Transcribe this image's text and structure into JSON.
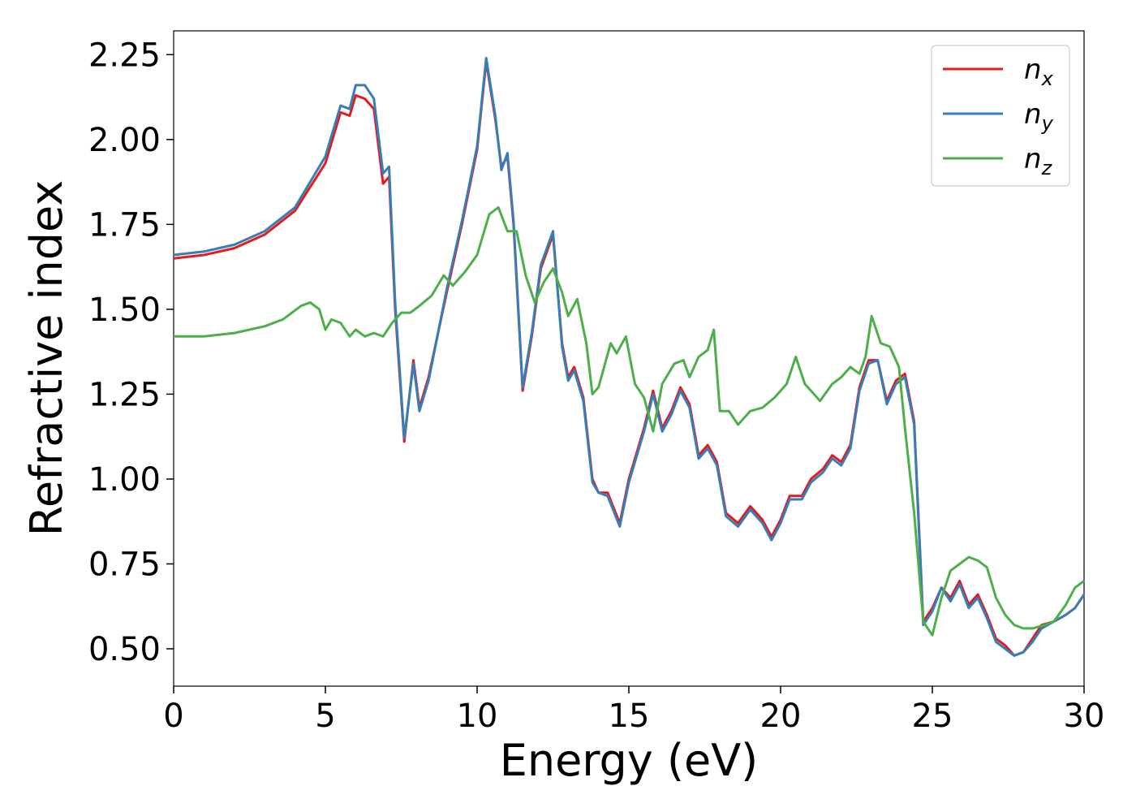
{
  "chart_data": {
    "type": "line",
    "xlabel": "Energy (eV)",
    "ylabel": "Refractive index",
    "xlim": [
      0,
      30
    ],
    "ylim": [
      0.39,
      2.32
    ],
    "xticks": [
      "0",
      "5",
      "10",
      "15",
      "20",
      "25",
      "30"
    ],
    "yticks": [
      "0.50",
      "0.75",
      "1.00",
      "1.25",
      "1.50",
      "1.75",
      "2.00",
      "2.25"
    ],
    "legend_position": "top-right",
    "grid": false,
    "series": [
      {
        "name": "n_x",
        "label_main": "n",
        "label_sub": "x",
        "color": "#e41a1c",
        "x": [
          0,
          1,
          2,
          3,
          4,
          5,
          5.5,
          5.8,
          6,
          6.3,
          6.6,
          6.9,
          7.1,
          7.3,
          7.6,
          7.9,
          8.1,
          8.4,
          9,
          9.5,
          10,
          10.3,
          10.6,
          10.8,
          11,
          11.2,
          11.5,
          11.8,
          12.1,
          12.5,
          12.8,
          13,
          13.2,
          13.5,
          13.8,
          14,
          14.3,
          14.7,
          15,
          15.5,
          15.8,
          16.1,
          16.4,
          16.7,
          17,
          17.3,
          17.6,
          17.9,
          18.2,
          18.6,
          19,
          19.4,
          19.7,
          20,
          20.3,
          20.7,
          21,
          21.4,
          21.7,
          22,
          22.3,
          22.6,
          22.9,
          23.2,
          23.5,
          23.8,
          24.1,
          24.4,
          24.7,
          25,
          25.3,
          25.6,
          25.9,
          26.2,
          26.5,
          26.8,
          27.1,
          27.4,
          27.7,
          28,
          28.3,
          28.6,
          29,
          29.4,
          29.7,
          30
        ],
        "y": [
          1.65,
          1.66,
          1.68,
          1.72,
          1.79,
          1.93,
          2.08,
          2.07,
          2.13,
          2.12,
          2.09,
          1.87,
          1.89,
          1.5,
          1.11,
          1.35,
          1.21,
          1.3,
          1.55,
          1.75,
          1.97,
          2.23,
          2.06,
          1.92,
          1.95,
          1.75,
          1.26,
          1.42,
          1.62,
          1.72,
          1.4,
          1.3,
          1.33,
          1.24,
          1,
          0.96,
          0.96,
          0.87,
          1,
          1.15,
          1.26,
          1.15,
          1.2,
          1.27,
          1.22,
          1.07,
          1.1,
          1.05,
          0.9,
          0.87,
          0.92,
          0.88,
          0.83,
          0.88,
          0.95,
          0.95,
          1,
          1.03,
          1.07,
          1.05,
          1.1,
          1.27,
          1.35,
          1.35,
          1.23,
          1.29,
          1.31,
          1.17,
          0.58,
          0.62,
          0.68,
          0.65,
          0.7,
          0.63,
          0.66,
          0.6,
          0.53,
          0.51,
          0.48,
          0.49,
          0.53,
          0.57,
          0.58,
          0.6,
          0.62,
          0.66
        ]
      },
      {
        "name": "n_y",
        "label_main": "n",
        "label_sub": "y",
        "color": "#377eb8",
        "x": [
          0,
          1,
          2,
          3,
          4,
          5,
          5.5,
          5.8,
          6,
          6.3,
          6.6,
          6.9,
          7.1,
          7.3,
          7.6,
          7.9,
          8.1,
          8.4,
          9,
          9.5,
          10,
          10.3,
          10.6,
          10.8,
          11,
          11.2,
          11.5,
          11.8,
          12.1,
          12.5,
          12.8,
          13,
          13.2,
          13.5,
          13.8,
          14,
          14.3,
          14.7,
          15,
          15.5,
          15.8,
          16.1,
          16.4,
          16.7,
          17,
          17.3,
          17.6,
          17.9,
          18.2,
          18.6,
          19,
          19.4,
          19.7,
          20,
          20.3,
          20.7,
          21,
          21.4,
          21.7,
          22,
          22.3,
          22.6,
          22.9,
          23.2,
          23.5,
          23.8,
          24.1,
          24.4,
          24.7,
          25,
          25.3,
          25.6,
          25.9,
          26.2,
          26.5,
          26.8,
          27.1,
          27.4,
          27.7,
          28,
          28.3,
          28.6,
          29,
          29.4,
          29.7,
          30
        ],
        "y": [
          1.66,
          1.67,
          1.69,
          1.73,
          1.8,
          1.95,
          2.1,
          2.09,
          2.16,
          2.16,
          2.12,
          1.9,
          1.92,
          1.52,
          1.12,
          1.34,
          1.2,
          1.29,
          1.56,
          1.76,
          1.98,
          2.24,
          2.07,
          1.91,
          1.96,
          1.76,
          1.27,
          1.43,
          1.63,
          1.73,
          1.39,
          1.29,
          1.32,
          1.23,
          0.99,
          0.96,
          0.95,
          0.86,
          0.99,
          1.14,
          1.25,
          1.14,
          1.19,
          1.26,
          1.21,
          1.06,
          1.09,
          1.04,
          0.89,
          0.86,
          0.91,
          0.87,
          0.82,
          0.87,
          0.94,
          0.94,
          0.99,
          1.02,
          1.06,
          1.04,
          1.09,
          1.26,
          1.34,
          1.35,
          1.22,
          1.28,
          1.3,
          1.16,
          0.57,
          0.61,
          0.68,
          0.64,
          0.69,
          0.62,
          0.65,
          0.59,
          0.52,
          0.5,
          0.48,
          0.49,
          0.52,
          0.56,
          0.58,
          0.6,
          0.62,
          0.66
        ]
      },
      {
        "name": "n_z",
        "label_main": "n",
        "label_sub": "z",
        "color": "#4daf4a",
        "x": [
          0,
          1,
          2,
          3,
          3.6,
          4.2,
          4.5,
          4.8,
          5,
          5.2,
          5.5,
          5.8,
          6,
          6.3,
          6.6,
          6.9,
          7.2,
          7.5,
          7.8,
          8.1,
          8.5,
          8.9,
          9.2,
          9.6,
          10,
          10.4,
          10.7,
          11,
          11.3,
          11.6,
          11.9,
          12.2,
          12.5,
          12.8,
          13,
          13.3,
          13.6,
          13.8,
          14,
          14.4,
          14.6,
          14.9,
          15.2,
          15.5,
          15.8,
          16.1,
          16.5,
          16.8,
          17,
          17.3,
          17.6,
          17.8,
          18,
          18.3,
          18.6,
          19,
          19.4,
          19.8,
          20.2,
          20.5,
          20.8,
          21,
          21.3,
          21.7,
          22,
          22.3,
          22.6,
          22.8,
          23,
          23.3,
          23.6,
          23.9,
          24.1,
          24.4,
          24.7,
          25,
          25.3,
          25.6,
          25.9,
          26.2,
          26.5,
          26.8,
          27.1,
          27.4,
          27.7,
          28,
          28.3,
          28.7,
          29,
          29.4,
          29.7,
          30
        ],
        "y": [
          1.42,
          1.42,
          1.43,
          1.45,
          1.47,
          1.51,
          1.52,
          1.5,
          1.44,
          1.47,
          1.46,
          1.42,
          1.44,
          1.42,
          1.43,
          1.42,
          1.46,
          1.49,
          1.49,
          1.51,
          1.54,
          1.6,
          1.57,
          1.61,
          1.66,
          1.78,
          1.8,
          1.73,
          1.73,
          1.6,
          1.52,
          1.58,
          1.62,
          1.55,
          1.48,
          1.53,
          1.4,
          1.25,
          1.27,
          1.4,
          1.37,
          1.42,
          1.28,
          1.24,
          1.14,
          1.28,
          1.34,
          1.35,
          1.3,
          1.36,
          1.38,
          1.44,
          1.2,
          1.2,
          1.16,
          1.2,
          1.21,
          1.24,
          1.28,
          1.36,
          1.28,
          1.26,
          1.23,
          1.28,
          1.3,
          1.33,
          1.31,
          1.36,
          1.48,
          1.4,
          1.39,
          1.33,
          1.15,
          0.9,
          0.58,
          0.54,
          0.65,
          0.73,
          0.75,
          0.77,
          0.76,
          0.74,
          0.65,
          0.6,
          0.57,
          0.56,
          0.56,
          0.57,
          0.58,
          0.63,
          0.68,
          0.7
        ]
      }
    ]
  }
}
